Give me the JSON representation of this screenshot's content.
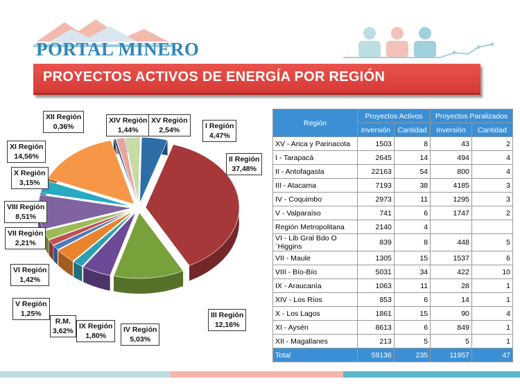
{
  "header": {
    "logo_text": "PORTAL MINERO",
    "title": "PROYECTOS ACTIVOS DE ENERGÍA POR REGIÓN"
  },
  "colors": {
    "title_bar": "#d63a36",
    "table_header": "#3c8fd4",
    "logo": "#2f87b8"
  },
  "chart_data": {
    "type": "pie",
    "title": "",
    "slices": [
      {
        "label": "I Región",
        "value": 4.47,
        "text": "4,47%",
        "color": "#2e6ea8"
      },
      {
        "label": "II Región",
        "value": 37.48,
        "text": "37,48%",
        "color": "#a6383a"
      },
      {
        "label": "III Región",
        "value": 12.16,
        "text": "12,16%",
        "color": "#79a13b"
      },
      {
        "label": "IV Región",
        "value": 5.03,
        "text": "5,03%",
        "color": "#6c4a97"
      },
      {
        "label": "IX Región",
        "value": 1.8,
        "text": "1,80%",
        "color": "#2f9fb3"
      },
      {
        "label": "R.M.",
        "value": 3.62,
        "text": "3,62%",
        "color": "#e9842c"
      },
      {
        "label": "V Región",
        "value": 1.25,
        "text": "1,25%",
        "color": "#4b7bbf"
      },
      {
        "label": "VI Región",
        "value": 1.42,
        "text": "1,42%",
        "color": "#c0504d"
      },
      {
        "label": "VII Región",
        "value": 2.21,
        "text": "2,21%",
        "color": "#9bbb59"
      },
      {
        "label": "VIII Región",
        "value": 8.51,
        "text": "8,51%",
        "color": "#8064a2"
      },
      {
        "label": "X Región",
        "value": 3.15,
        "text": "3,15%",
        "color": "#27a9c1"
      },
      {
        "label": "XI Región",
        "value": 14.56,
        "text": "14,56%",
        "color": "#f79646"
      },
      {
        "label": "XII Región",
        "value": 0.36,
        "text": "0,36%",
        "color": "#1f497d"
      },
      {
        "label": "XIV Región",
        "value": 1.44,
        "text": "1,44%",
        "color": "#e6a5a0"
      },
      {
        "label": "XV Región",
        "value": 2.54,
        "text": "2,54%",
        "color": "#c7dba6"
      }
    ]
  },
  "table": {
    "header_region": "Región",
    "group_active": "Proyectos Activos",
    "group_paralyzed": "Proyectos Paralizados",
    "col_investment": "Inversión",
    "col_quantity": "Cantidad",
    "rows": [
      {
        "region": "XV - Arica y Parinacota",
        "a_inv": "1503",
        "a_cant": "8",
        "p_inv": "43",
        "p_cant": "2"
      },
      {
        "region": "I - Tarapacá",
        "a_inv": "2645",
        "a_cant": "14",
        "p_inv": "494",
        "p_cant": "4"
      },
      {
        "region": "II - Antofagasta",
        "a_inv": "22163",
        "a_cant": "54",
        "p_inv": "800",
        "p_cant": "4"
      },
      {
        "region": "III - Atacama",
        "a_inv": "7193",
        "a_cant": "38",
        "p_inv": "4185",
        "p_cant": "3"
      },
      {
        "region": "IV - Coquimbo",
        "a_inv": "2973",
        "a_cant": "11",
        "p_inv": "1295",
        "p_cant": "3"
      },
      {
        "region": "V - Valparaíso",
        "a_inv": "741",
        "a_cant": "6",
        "p_inv": "1747",
        "p_cant": "2"
      },
      {
        "region": "Región Metropolitana",
        "a_inv": "2140",
        "a_cant": "4",
        "p_inv": "",
        "p_cant": ""
      },
      {
        "region": "VI - Lib Gral Bdo O´Higgins",
        "a_inv": "839",
        "a_cant": "8",
        "p_inv": "448",
        "p_cant": "5"
      },
      {
        "region": "VII - Maule",
        "a_inv": "1305",
        "a_cant": "15",
        "p_inv": "1537",
        "p_cant": "6"
      },
      {
        "region": "VIII - Bío-Bío",
        "a_inv": "5031",
        "a_cant": "34",
        "p_inv": "422",
        "p_cant": "10"
      },
      {
        "region": "IX - Araucanía",
        "a_inv": "1063",
        "a_cant": "11",
        "p_inv": "28",
        "p_cant": "1"
      },
      {
        "region": "XIV - Los Ríos",
        "a_inv": "853",
        "a_cant": "6",
        "p_inv": "14",
        "p_cant": "1"
      },
      {
        "region": "X - Los Lagos",
        "a_inv": "1861",
        "a_cant": "15",
        "p_inv": "90",
        "p_cant": "4"
      },
      {
        "region": "XI - Aysén",
        "a_inv": "8613",
        "a_cant": "6",
        "p_inv": "849",
        "p_cant": "1"
      },
      {
        "region": "XII - Magallanes",
        "a_inv": "213",
        "a_cant": "5",
        "p_inv": "5",
        "p_cant": "1"
      }
    ],
    "total": {
      "region": "Total",
      "a_inv": "59136",
      "a_cant": "235",
      "p_inv": "11957",
      "p_cant": "47"
    }
  }
}
